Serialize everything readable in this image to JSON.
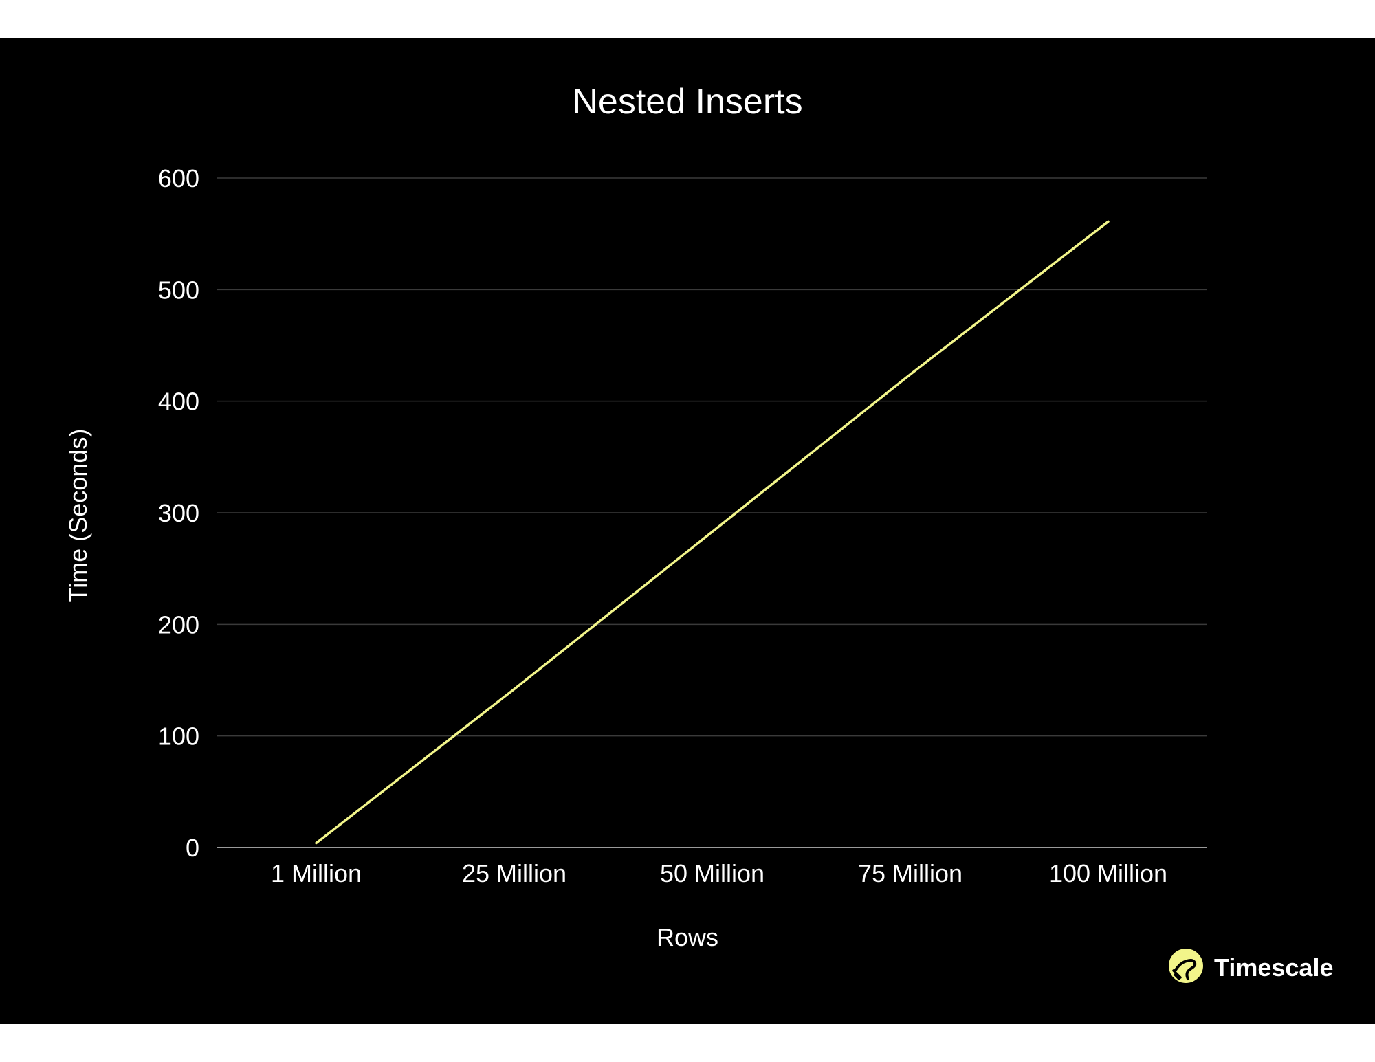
{
  "chart_data": {
    "type": "line",
    "title": "Nested Inserts",
    "xlabel": "Rows",
    "ylabel": "Time (Seconds)",
    "categories": [
      "1 Million",
      "25 Million",
      "50 Million",
      "75 Million",
      "100 Million"
    ],
    "series": [
      {
        "values": [
          4,
          142,
          283,
          424,
          561
        ]
      }
    ],
    "ylim": [
      0,
      600
    ],
    "yticks": [
      0,
      100,
      200,
      300,
      400,
      500,
      600
    ],
    "grid": true,
    "legend": "none"
  },
  "colors": {
    "background": "#000000",
    "line": "#f2f58a",
    "grid": "#3a3a3a",
    "axis": "#9a9a9a",
    "text": "#ffffff",
    "brand": "#f2f58a"
  },
  "brand": {
    "name": "Timescale",
    "icon": "timescale-logo-icon"
  }
}
